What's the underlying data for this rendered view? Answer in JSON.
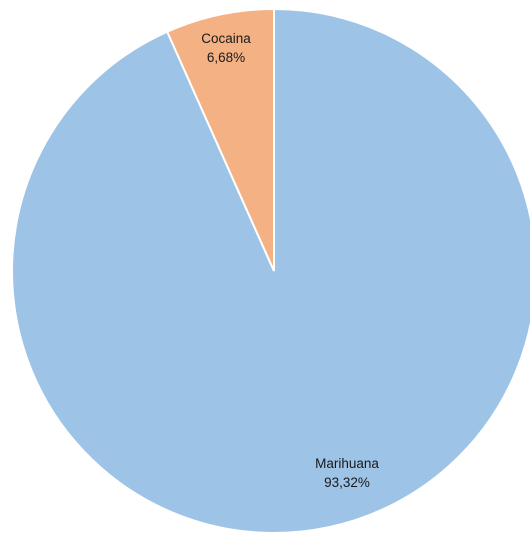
{
  "chart_data": {
    "type": "pie",
    "start_angle": "12 o'clock",
    "direction": "clockwise",
    "slices": [
      {
        "name": "Marihuana",
        "value": 93.32,
        "value_label": "93,32%",
        "color": "#9dc3e6"
      },
      {
        "name": "Cocaina",
        "value": 6.68,
        "value_label": "6,68%",
        "color": "#f4b183"
      }
    ],
    "slice_border_color": "#ffffff",
    "legend": "none",
    "title": ""
  }
}
